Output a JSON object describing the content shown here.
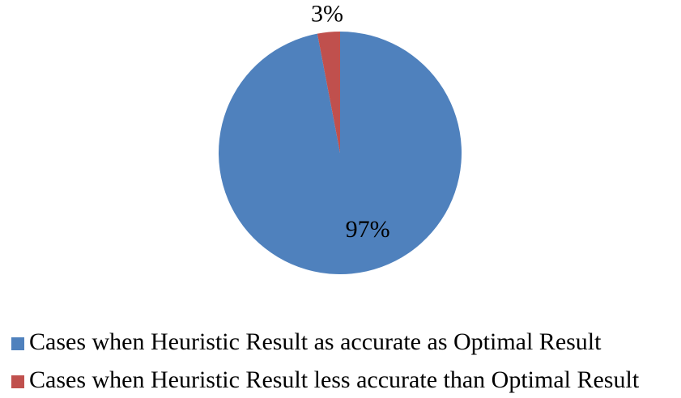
{
  "chart_data": {
    "type": "pie",
    "categories": [
      "Cases when Heuristic Result as accurate as Optimal Result",
      "Cases when Heuristic Result less accurate than Optimal Result"
    ],
    "values": [
      97,
      3
    ],
    "value_labels": [
      "97%",
      "3%"
    ],
    "colors": [
      "#4f81bd",
      "#c0504d"
    ]
  }
}
